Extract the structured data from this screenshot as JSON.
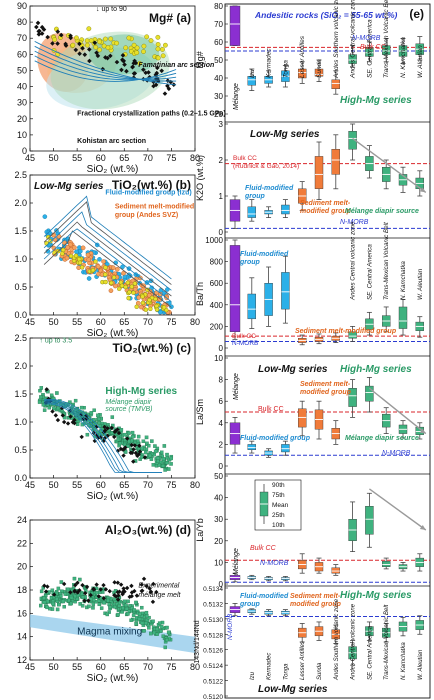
{
  "panels": {
    "a": {
      "label": "Mg# (a)",
      "xlabel": "SiO₂ (wt.%)",
      "ylim": [
        0,
        90
      ],
      "xlim": [
        45,
        80
      ],
      "yticks": [
        0,
        10,
        20,
        30,
        40,
        50,
        60,
        70,
        80,
        90
      ],
      "xticks": [
        45,
        50,
        55,
        60,
        65,
        70,
        75,
        80
      ],
      "notes": {
        "up_to": "up to 90",
        "famatinian": "Famatinian arc section",
        "fractional": "Fractional crystallization paths (0.2–1.5 GPa)",
        "kohistan": "Kohistan arc section"
      }
    },
    "b": {
      "label": "TiO₂(wt.%) (b)",
      "series_label": "Low-Mg series",
      "xlabel": "SiO₂ (wt.%)",
      "ylim": [
        0,
        2.5
      ],
      "xlim": [
        45,
        80
      ],
      "yticks": [
        0,
        0.5,
        1.0,
        1.5,
        2.0,
        2.5
      ],
      "xticks": [
        45,
        50,
        55,
        60,
        65,
        70,
        75,
        80
      ],
      "notes": {
        "fluid": "Fluid-modified group (Izu)",
        "sediment": "Sediment melt-modified group (Andes SVZ)"
      }
    },
    "c": {
      "label": "TiO₂(wt.%) (c)",
      "xlabel": "SiO₂ (wt.%)",
      "ylim": [
        0,
        2.5
      ],
      "xlim": [
        45,
        80
      ],
      "yticks": [
        0,
        0.5,
        1.0,
        1.5,
        2.0,
        2.5
      ],
      "xticks": [
        45,
        50,
        55,
        60,
        65,
        70,
        75,
        80
      ],
      "notes": {
        "up_to": "up to 3.5",
        "high_mg": "High-Mg series",
        "melange": "Mélange diapir source (TMVB)"
      }
    },
    "d": {
      "label": "Al₂O₃(wt.%) (d)",
      "xlabel": "SiO₂ (wt.%)",
      "ylim": [
        12,
        24
      ],
      "xlim": [
        45,
        80
      ],
      "yticks": [
        12,
        14,
        16,
        18,
        20,
        22,
        24
      ],
      "xticks": [
        45,
        50,
        55,
        60,
        65,
        70,
        75,
        80
      ],
      "notes": {
        "experimental": "Experimental mélange melt",
        "mixing": "Magma mixing"
      }
    }
  },
  "right": {
    "label": "(e)",
    "title": "Andesitic rocks (SiO₂ = 55-65 wt.%)",
    "categories": [
      "Mélange",
      "Izu",
      "Kermadec",
      "Tonga",
      "Lesser Antilles",
      "Sunda",
      "Andes Southern volcanic zone",
      "Andes Central volcanic zone",
      "SE. Central America",
      "Trans-Mexican Volcanic Belt",
      "N. Kamchatka",
      "W. Aleutian"
    ],
    "legend": [
      "90th",
      "75th",
      "Mean",
      "25th",
      "10th"
    ],
    "mg": {
      "ylabel": "Mg#",
      "ylim": [
        20,
        80
      ],
      "yticks": [
        20,
        30,
        40,
        50,
        60,
        70,
        80
      ],
      "labels": {
        "nmorb": "N-MORB",
        "bulkcc": "Bulk CC",
        "high_mg": "High-Mg series"
      },
      "boxes": [
        {
          "p10": 58,
          "p25": 58,
          "mean": 70,
          "p75": 80,
          "p90": 80,
          "color": "#8b2fd1"
        },
        {
          "p10": 33,
          "p25": 36,
          "mean": 39,
          "p75": 41,
          "p90": 45,
          "color": "#2bb0e8"
        },
        {
          "p10": 35,
          "p25": 37,
          "mean": 39,
          "p75": 41,
          "p90": 44,
          "color": "#2bb0e8"
        },
        {
          "p10": 35,
          "p25": 38,
          "mean": 41,
          "p75": 44,
          "p90": 47,
          "color": "#2bb0e8"
        },
        {
          "p10": 37,
          "p25": 40,
          "mean": 43,
          "p75": 45,
          "p90": 49,
          "color": "#f07b3a"
        },
        {
          "p10": 38,
          "p25": 41,
          "mean": 42,
          "p75": 45,
          "p90": 50,
          "color": "#f07b3a"
        },
        {
          "p10": 31,
          "p25": 34,
          "mean": 37,
          "p75": 39,
          "p90": 44,
          "color": "#f07b3a"
        },
        {
          "p10": 46,
          "p25": 48,
          "mean": 50,
          "p75": 53,
          "p90": 58,
          "color": "#3fb27f"
        },
        {
          "p10": 49,
          "p25": 52,
          "mean": 54,
          "p75": 57,
          "p90": 60,
          "color": "#3fb27f"
        },
        {
          "p10": 49,
          "p25": 53,
          "mean": 55,
          "p75": 58,
          "p90": 62,
          "color": "#3fb27f"
        },
        {
          "p10": 48,
          "p25": 52,
          "mean": 55,
          "p75": 58,
          "p90": 62,
          "color": "#3fb27f"
        },
        {
          "p10": 50,
          "p25": 53,
          "mean": 56,
          "p75": 59,
          "p90": 63,
          "color": "#3fb27f"
        }
      ]
    },
    "k2o": {
      "ylabel": "K2O (wt.%)",
      "ylim": [
        0,
        3
      ],
      "yticks": [
        0,
        1,
        2,
        3
      ],
      "labels": {
        "series": "Low-Mg series",
        "bulkcc": "Bulk CC (Rudnick & Gao, 2014)",
        "fluid": "Fluid-modified group",
        "sediment": "Sediment melt-modified group",
        "nmorb": "N-MORB",
        "melange": "Mélange diapir source"
      },
      "boxes": [
        {
          "p10": 0.1,
          "p25": 0.3,
          "mean": 0.6,
          "p75": 0.9,
          "p90": 1.0,
          "color": "#8b2fd1"
        },
        {
          "p10": 0.3,
          "p25": 0.4,
          "mean": 0.5,
          "p75": 0.7,
          "p90": 0.9,
          "color": "#2bb0e8"
        },
        {
          "p10": 0.4,
          "p25": 0.5,
          "mean": 0.55,
          "p75": 0.6,
          "p90": 0.7,
          "color": "#2bb0e8"
        },
        {
          "p10": 0.4,
          "p25": 0.5,
          "mean": 0.6,
          "p75": 0.75,
          "p90": 0.9,
          "color": "#2bb0e8"
        },
        {
          "p10": 0.6,
          "p25": 0.8,
          "mean": 1.0,
          "p75": 1.2,
          "p90": 1.4,
          "color": "#f07b3a"
        },
        {
          "p10": 0.9,
          "p25": 1.2,
          "mean": 1.6,
          "p75": 2.1,
          "p90": 2.5,
          "color": "#f07b3a"
        },
        {
          "p10": 1.2,
          "p25": 1.6,
          "mean": 2.0,
          "p75": 2.3,
          "p90": 2.7,
          "color": "#f07b3a"
        },
        {
          "p10": 2.0,
          "p25": 2.3,
          "mean": 2.6,
          "p75": 2.8,
          "p90": 3.0,
          "color": "#3fb27f"
        },
        {
          "p10": 1.5,
          "p25": 1.7,
          "mean": 1.9,
          "p75": 2.1,
          "p90": 2.4,
          "color": "#3fb27f"
        },
        {
          "p10": 1.2,
          "p25": 1.4,
          "mean": 1.6,
          "p75": 1.8,
          "p90": 2.0,
          "color": "#3fb27f"
        },
        {
          "p10": 1.1,
          "p25": 1.3,
          "mean": 1.45,
          "p75": 1.6,
          "p90": 1.8,
          "color": "#3fb27f"
        },
        {
          "p10": 1.0,
          "p25": 1.2,
          "mean": 1.35,
          "p75": 1.5,
          "p90": 1.7,
          "color": "#3fb27f"
        }
      ]
    },
    "bath": {
      "ylabel": "Ba/Th",
      "ylim": [
        0,
        1000
      ],
      "yticks": [
        0,
        200,
        400,
        600,
        800,
        1000
      ],
      "labels": {
        "fluid": "Fluid-modified group",
        "sediment": "Sediment melt-modified group",
        "bulkcc": "Bulk CC",
        "nmorb": "N-MORB"
      },
      "boxes": [
        {
          "p10": 80,
          "p25": 150,
          "mean": 400,
          "p75": 950,
          "p90": 1000,
          "color": "#8b2fd1"
        },
        {
          "p10": 180,
          "p25": 270,
          "mean": 360,
          "p75": 500,
          "p90": 650,
          "color": "#2bb0e8"
        },
        {
          "p10": 200,
          "p25": 300,
          "mean": 450,
          "p75": 600,
          "p90": 750,
          "color": "#2bb0e8"
        },
        {
          "p10": 230,
          "p25": 360,
          "mean": 520,
          "p75": 700,
          "p90": 850,
          "color": "#2bb0e8"
        },
        {
          "p10": 30,
          "p25": 50,
          "mean": 70,
          "p75": 90,
          "p90": 120,
          "color": "#f07b3a"
        },
        {
          "p10": 40,
          "p25": 60,
          "mean": 80,
          "p75": 100,
          "p90": 130,
          "color": "#f07b3a"
        },
        {
          "p10": 50,
          "p25": 70,
          "mean": 90,
          "p75": 110,
          "p90": 140,
          "color": "#f07b3a"
        },
        {
          "p10": 60,
          "p25": 90,
          "mean": 110,
          "p75": 150,
          "p90": 200,
          "color": "#3fb27f"
        },
        {
          "p10": 120,
          "p25": 170,
          "mean": 220,
          "p75": 270,
          "p90": 330,
          "color": "#3fb27f"
        },
        {
          "p10": 150,
          "p25": 200,
          "mean": 250,
          "p75": 300,
          "p90": 380,
          "color": "#3fb27f"
        },
        {
          "p10": 120,
          "p25": 180,
          "mean": 250,
          "p75": 380,
          "p90": 450,
          "color": "#3fb27f"
        },
        {
          "p10": 100,
          "p25": 160,
          "mean": 200,
          "p75": 240,
          "p90": 290,
          "color": "#3fb27f"
        }
      ]
    },
    "lasm": {
      "ylabel": "La/Sm",
      "ylim": [
        0,
        10
      ],
      "yticks": [
        0,
        2,
        4,
        6,
        8,
        10
      ],
      "labels": {
        "low_mg": "Low-Mg series",
        "high_mg": "High-Mg series",
        "sediment": "Sediment melt-modified group",
        "bulkcc": "Bulk CC",
        "fluid": "Fluid-modified group",
        "melange": "Mélange diapir source",
        "nmorb": "N-MORB"
      },
      "boxes": [
        {
          "p10": 1.2,
          "p25": 2.0,
          "mean": 3.0,
          "p75": 4.0,
          "p90": 4.5,
          "color": "#8b2fd1"
        },
        {
          "p10": 1.2,
          "p25": 1.5,
          "mean": 1.7,
          "p75": 2.0,
          "p90": 2.3,
          "color": "#2bb0e8"
        },
        {
          "p10": 0.8,
          "p25": 1.0,
          "mean": 1.2,
          "p75": 1.4,
          "p90": 1.6,
          "color": "#2bb0e8"
        },
        {
          "p10": 1.0,
          "p25": 1.3,
          "mean": 1.6,
          "p75": 2.0,
          "p90": 2.3,
          "color": "#2bb0e8"
        },
        {
          "p10": 2.8,
          "p25": 3.6,
          "mean": 4.5,
          "p75": 5.3,
          "p90": 6.0,
          "color": "#f07b3a"
        },
        {
          "p10": 2.5,
          "p25": 3.4,
          "mean": 4.3,
          "p75": 5.2,
          "p90": 6.0,
          "color": "#f07b3a"
        },
        {
          "p10": 2.0,
          "p25": 2.5,
          "mean": 3.0,
          "p75": 3.5,
          "p90": 4.2,
          "color": "#f07b3a"
        },
        {
          "p10": 4.5,
          "p25": 5.5,
          "mean": 6.5,
          "p75": 7.2,
          "p90": 8.0,
          "color": "#3fb27f"
        },
        {
          "p10": 5.0,
          "p25": 6.0,
          "mean": 6.8,
          "p75": 7.4,
          "p90": 8.2,
          "color": "#3fb27f"
        },
        {
          "p10": 3.0,
          "p25": 3.6,
          "mean": 4.2,
          "p75": 4.8,
          "p90": 5.4,
          "color": "#3fb27f"
        },
        {
          "p10": 2.6,
          "p25": 3.0,
          "mean": 3.4,
          "p75": 3.8,
          "p90": 4.2,
          "color": "#3fb27f"
        },
        {
          "p10": 2.5,
          "p25": 2.9,
          "mean": 3.2,
          "p75": 3.6,
          "p90": 4.0,
          "color": "#3fb27f"
        }
      ]
    },
    "layb": {
      "ylabel": "La/Yb",
      "ylim": [
        0,
        50
      ],
      "yticks": [
        0,
        10,
        20,
        30,
        40,
        50
      ],
      "labels": {
        "bulkcc": "Bulk CC",
        "nmorb": "N-MORB"
      },
      "boxes": [
        {
          "p10": 1,
          "p25": 2,
          "mean": 3,
          "p75": 4,
          "p90": 5,
          "color": "#8b2fd1"
        },
        {
          "p10": 2,
          "p25": 2.5,
          "mean": 3,
          "p75": 3.5,
          "p90": 4,
          "color": "#2bb0e8"
        },
        {
          "p10": 1.5,
          "p25": 2,
          "mean": 2.5,
          "p75": 3,
          "p90": 3.5,
          "color": "#2bb0e8"
        },
        {
          "p10": 1.5,
          "p25": 2,
          "mean": 2.5,
          "p75": 3,
          "p90": 3.5,
          "color": "#2bb0e8"
        },
        {
          "p10": 5,
          "p25": 7,
          "mean": 9,
          "p75": 11,
          "p90": 14,
          "color": "#f07b3a"
        },
        {
          "p10": 5,
          "p25": 6,
          "mean": 8,
          "p75": 10,
          "p90": 12,
          "color": "#f07b3a"
        },
        {
          "p10": 4,
          "p25": 5,
          "mean": 6,
          "p75": 7.5,
          "p90": 9,
          "color": "#f07b3a"
        },
        {
          "p10": 15,
          "p25": 20,
          "mean": 25,
          "p75": 30,
          "p90": 38,
          "color": "#3fb27f"
        },
        {
          "p10": 17,
          "p25": 23,
          "mean": 30,
          "p75": 36,
          "p90": 42,
          "color": "#3fb27f"
        },
        {
          "p10": 7,
          "p25": 8,
          "mean": 9,
          "p75": 10.5,
          "p90": 12,
          "color": "#3fb27f"
        },
        {
          "p10": 6,
          "p25": 7,
          "mean": 8,
          "p75": 9,
          "p90": 10,
          "color": "#3fb27f"
        },
        {
          "p10": 6,
          "p25": 8,
          "mean": 10,
          "p75": 12,
          "p90": 14,
          "color": "#3fb27f"
        }
      ]
    },
    "nd": {
      "ylabel": "143Nd/144Nd",
      "ylim": [
        0.512,
        0.5134
      ],
      "yticks": [
        0.512,
        0.5122,
        0.5124,
        0.5126,
        0.5128,
        0.513,
        0.5132,
        0.5134
      ],
      "labels": {
        "fluid": "Fluid-modified group",
        "sediment": "Sediment melt-modified group",
        "high_mg": "High-Mg series",
        "low_mg": "Low-Mg series",
        "nmorb": "N-MORB"
      },
      "boxes": [
        {
          "p10": 0.51304,
          "p25": 0.51308,
          "mean": 0.51312,
          "p75": 0.51316,
          "p90": 0.5132,
          "color": "#8b2fd1"
        },
        {
          "p10": 0.51306,
          "p25": 0.51308,
          "mean": 0.5131,
          "p75": 0.51312,
          "p90": 0.51313,
          "color": "#2bb0e8"
        },
        {
          "p10": 0.51304,
          "p25": 0.51306,
          "mean": 0.51308,
          "p75": 0.5131,
          "p90": 0.51312,
          "color": "#2bb0e8"
        },
        {
          "p10": 0.51304,
          "p25": 0.51306,
          "mean": 0.51308,
          "p75": 0.5131,
          "p90": 0.51312,
          "color": "#2bb0e8"
        },
        {
          "p10": 0.5127,
          "p25": 0.51276,
          "mean": 0.51282,
          "p75": 0.51288,
          "p90": 0.51294,
          "color": "#f07b3a"
        },
        {
          "p10": 0.51272,
          "p25": 0.51278,
          "mean": 0.51284,
          "p75": 0.5129,
          "p90": 0.51296,
          "color": "#f07b3a"
        },
        {
          "p10": 0.51268,
          "p25": 0.51274,
          "mean": 0.5128,
          "p75": 0.51286,
          "p90": 0.51292,
          "color": "#f07b3a"
        },
        {
          "p10": 0.5124,
          "p25": 0.51248,
          "mean": 0.51256,
          "p75": 0.51264,
          "p90": 0.51272,
          "color": "#3fb27f"
        },
        {
          "p10": 0.51272,
          "p25": 0.51278,
          "mean": 0.51284,
          "p75": 0.5129,
          "p90": 0.51296,
          "color": "#3fb27f"
        },
        {
          "p10": 0.5127,
          "p25": 0.51276,
          "mean": 0.51282,
          "p75": 0.51288,
          "p90": 0.51294,
          "color": "#3fb27f"
        },
        {
          "p10": 0.51278,
          "p25": 0.51284,
          "mean": 0.5129,
          "p75": 0.51296,
          "p90": 0.51302,
          "color": "#3fb27f"
        },
        {
          "p10": 0.5128,
          "p25": 0.51286,
          "mean": 0.51292,
          "p75": 0.51298,
          "p90": 0.51304,
          "color": "#3fb27f"
        }
      ]
    }
  },
  "colors": {
    "lowmg_fluid": "#2bb0e8",
    "lowmg_sed": "#f07b3a",
    "highmg": "#3fb27f",
    "melange": "#8b2fd1",
    "bulkcc": "#d9262b",
    "nmorb": "#2b3bd1",
    "black": "#111111"
  },
  "chart_data": [
    {
      "type": "scatter",
      "title": "Mg#",
      "xlabel": "SiO₂ (wt.%)",
      "ylabel": "Mg#",
      "xlim": [
        45,
        80
      ],
      "ylim": [
        0,
        90
      ]
    },
    {
      "type": "scatter",
      "title": "TiO₂(wt.%)",
      "xlabel": "SiO₂ (wt.%)",
      "ylabel": "TiO₂",
      "xlim": [
        45,
        80
      ],
      "ylim": [
        0,
        2.5
      ]
    },
    {
      "type": "scatter",
      "title": "TiO₂(wt.%)",
      "xlabel": "SiO₂ (wt.%)",
      "ylabel": "TiO₂",
      "xlim": [
        45,
        80
      ],
      "ylim": [
        0,
        2.5
      ]
    },
    {
      "type": "scatter",
      "title": "Al₂O₃(wt.%)",
      "xlabel": "SiO₂ (wt.%)",
      "ylabel": "Al₂O₃",
      "xlim": [
        45,
        80
      ],
      "ylim": [
        12,
        24
      ]
    },
    {
      "type": "bar",
      "title": "Andesitic rocks (SiO₂ = 55-65 wt.%)",
      "categories": [
        "Mélange",
        "Izu",
        "Kermadec",
        "Tonga",
        "Lesser Antilles",
        "Sunda",
        "Andes Southern volcanic zone",
        "Andes Central volcanic zone",
        "SE. Central America",
        "Trans-Mexican Volcanic Belt",
        "N. Kamchatka",
        "W. Aleutian"
      ]
    }
  ]
}
